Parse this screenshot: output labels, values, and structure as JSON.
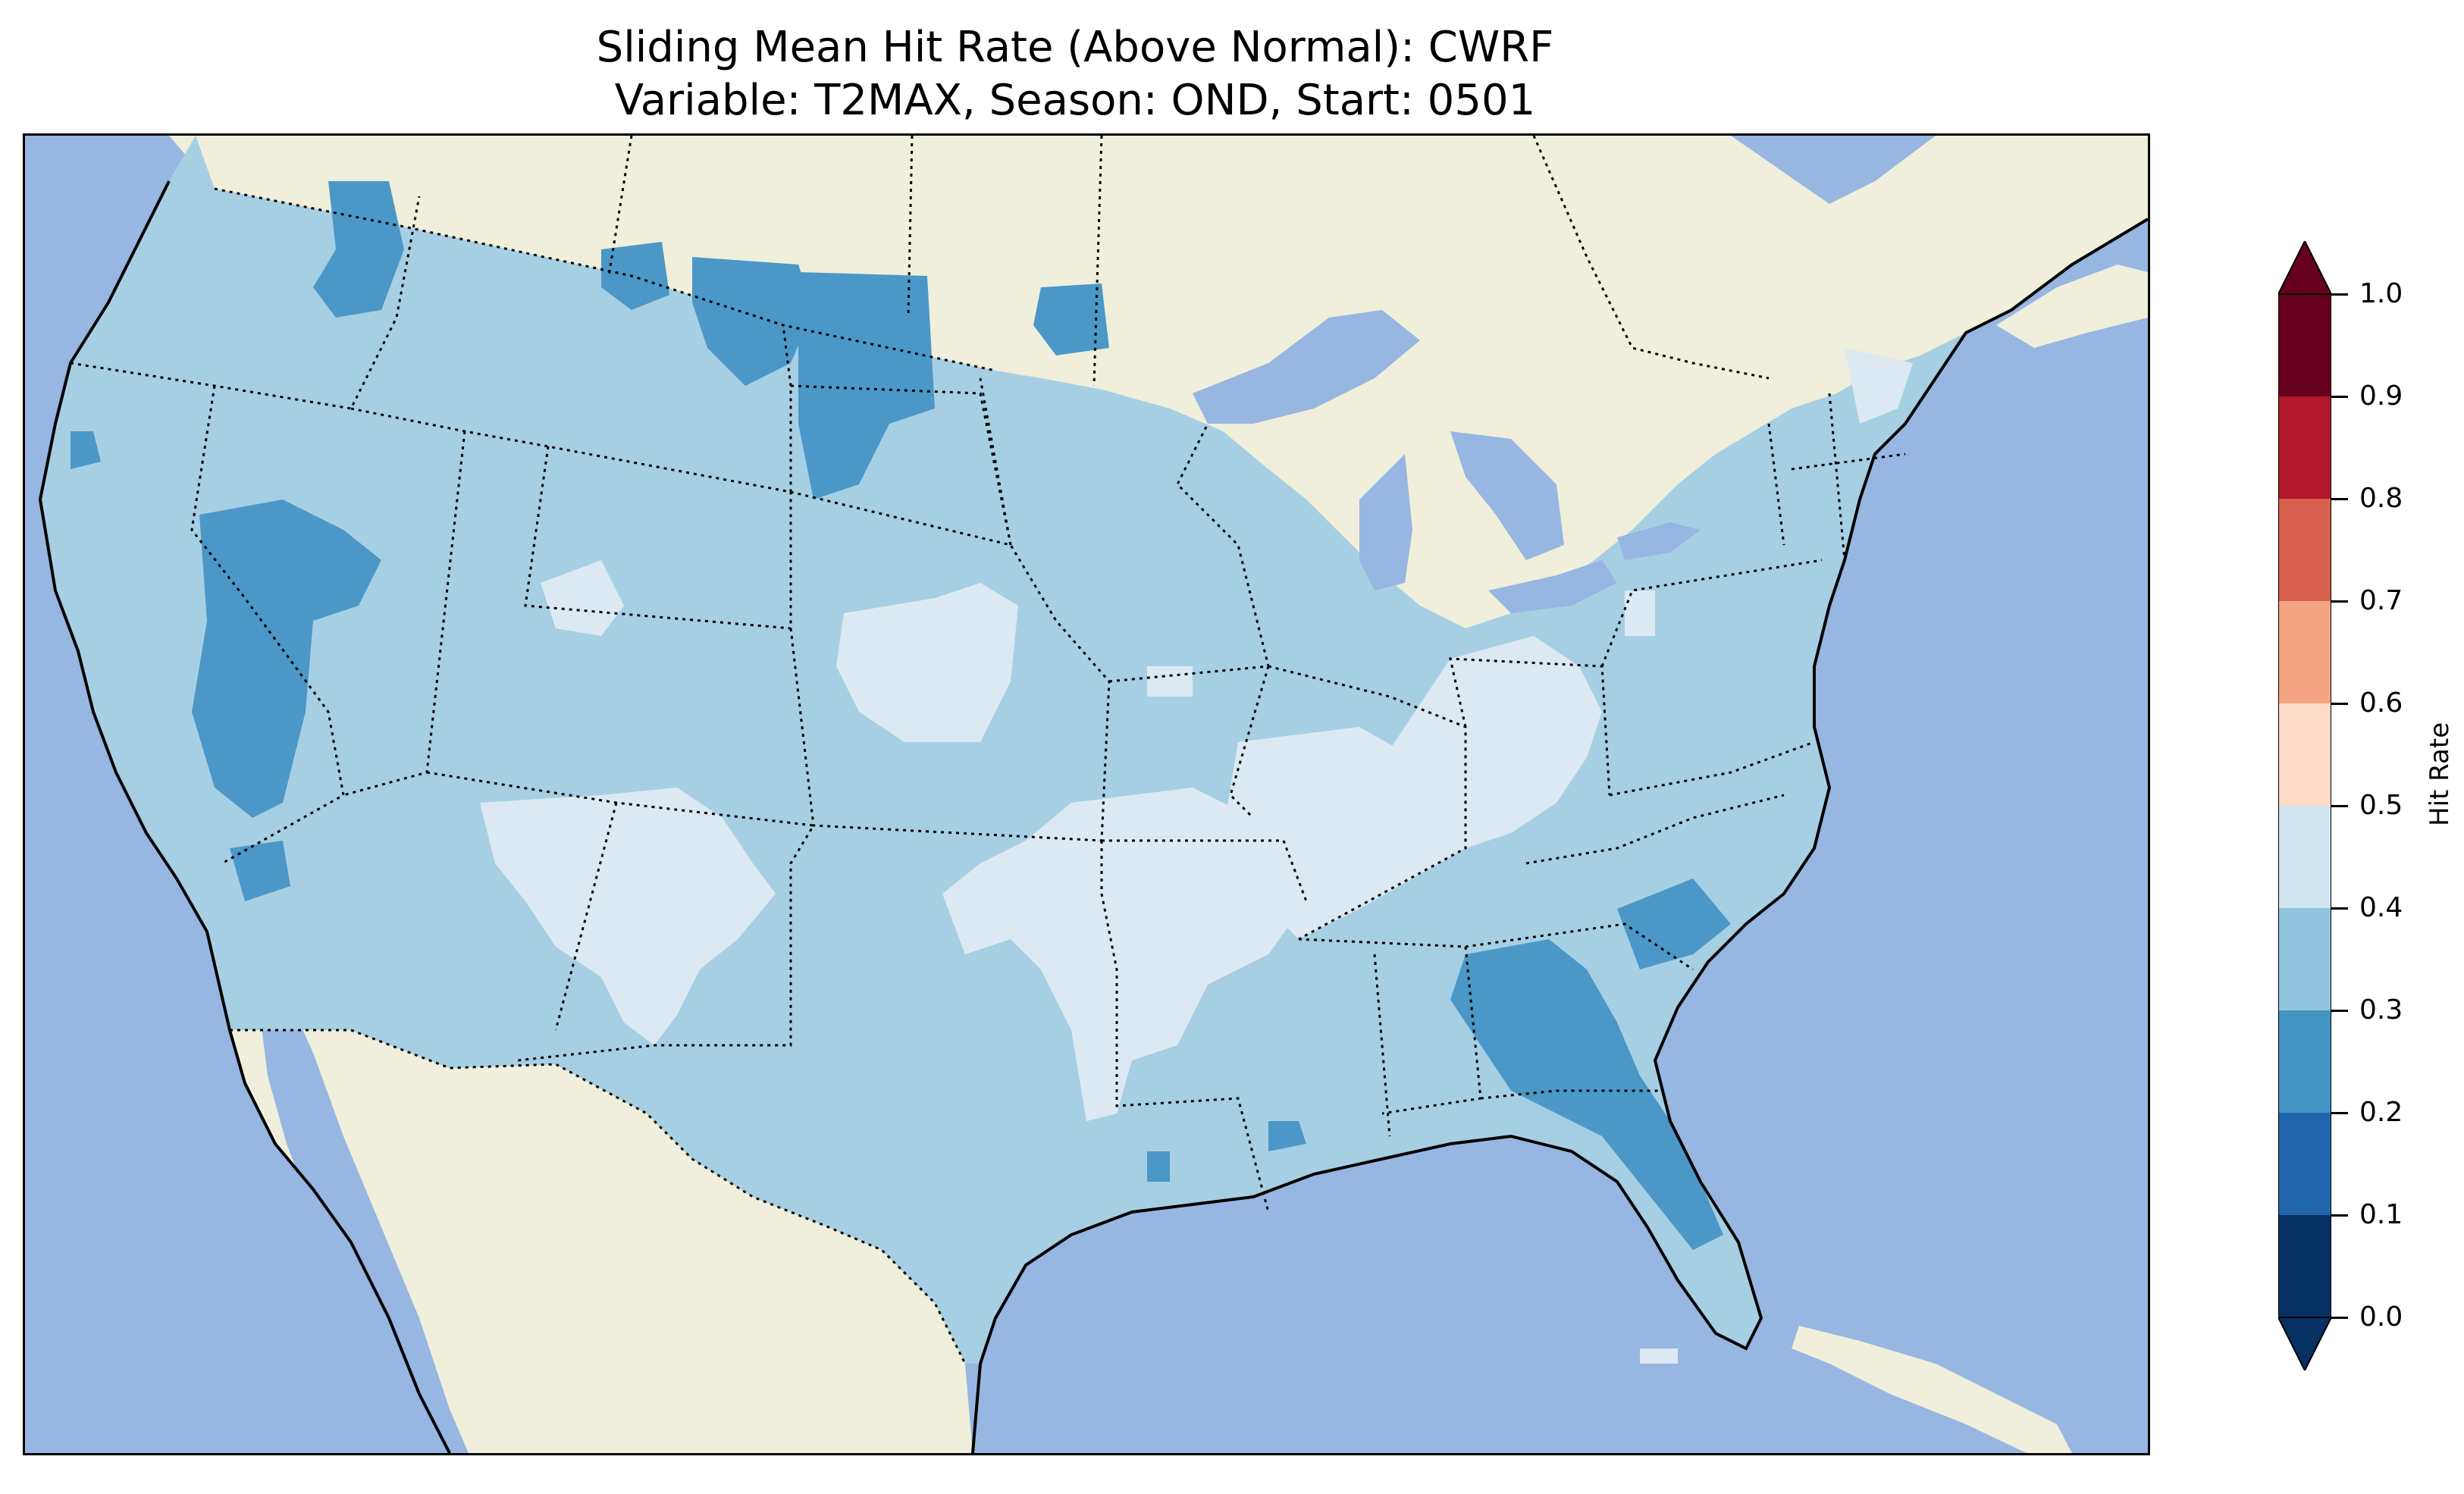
{
  "title": {
    "line1": "Sliding Mean Hit Rate (Above Normal): CWRF",
    "line2": "Variable: T2MAX, Season: OND, Start: 0501"
  },
  "map": {
    "colors": {
      "ocean": "#97b6e1",
      "land_outside": "#efefdb",
      "lakes": "#97b6e1",
      "coast": "#000000"
    },
    "fill_regions": [
      {
        "name": "low-0.2-0.3",
        "bin": "0.2-0.3",
        "color": "#4b98c8"
      },
      {
        "name": "mid-0.3-0.4",
        "bin": "0.3-0.4",
        "color": "#a7cfe4"
      },
      {
        "name": "high-0.4-0.5",
        "bin": "0.4-0.5",
        "color": "#dde9f2"
      }
    ]
  },
  "colorbar": {
    "label": "Hit Rate",
    "ticks": [
      "0.0",
      "0.1",
      "0.2",
      "0.3",
      "0.4",
      "0.5",
      "0.6",
      "0.7",
      "0.8",
      "0.9",
      "1.0"
    ],
    "levels": [
      {
        "range": "0.0-0.1",
        "color": "#053061"
      },
      {
        "range": "0.1-0.2",
        "color": "#2166ac"
      },
      {
        "range": "0.2-0.3",
        "color": "#4393c3"
      },
      {
        "range": "0.3-0.4",
        "color": "#92c5de"
      },
      {
        "range": "0.4-0.5",
        "color": "#d1e5f0"
      },
      {
        "range": "0.5-0.6",
        "color": "#fddbc7"
      },
      {
        "range": "0.6-0.7",
        "color": "#f4a582"
      },
      {
        "range": "0.7-0.8",
        "color": "#d6604d"
      },
      {
        "range": "0.8-0.9",
        "color": "#b2182b"
      },
      {
        "range": "0.9-1.0",
        "color": "#67001f"
      }
    ],
    "under_color": "#053061",
    "over_color": "#67001f"
  }
}
